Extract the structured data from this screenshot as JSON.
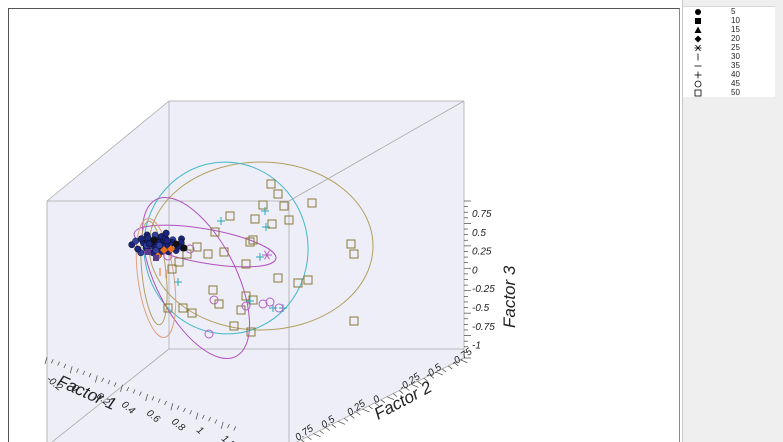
{
  "chart_data": {
    "type": "scatter",
    "dimensions": 3,
    "axes": {
      "x": {
        "label": "Factor 1",
        "ticks": [
          "-0.2",
          "0",
          "0.2",
          "0.4",
          "0.6",
          "0.8",
          "1",
          "1.2"
        ]
      },
      "y": {
        "label": "Factor 2",
        "ticks": [
          "-0.75",
          "-0.5",
          "-0.25",
          "0",
          "0.25",
          "0.5",
          "0.75"
        ]
      },
      "z": {
        "label": "Factor 3",
        "ticks": [
          "0.75",
          "0.5",
          "0.25",
          "0",
          "-0.25",
          "-0.5",
          "-0.75",
          "-1"
        ]
      }
    },
    "legend": {
      "position": "right",
      "entries": [
        {
          "symbol": "circle-filled",
          "label": "5"
        },
        {
          "symbol": "square-filled",
          "label": "10"
        },
        {
          "symbol": "triangle-filled",
          "label": "15"
        },
        {
          "symbol": "diamond-filled",
          "label": "20"
        },
        {
          "symbol": "asterisk",
          "label": "25"
        },
        {
          "symbol": "vbar",
          "label": "30"
        },
        {
          "symbol": "hbar",
          "label": "35"
        },
        {
          "symbol": "plus",
          "label": "40"
        },
        {
          "symbol": "circle-open",
          "label": "45"
        },
        {
          "symbol": "square-open",
          "label": "50"
        }
      ]
    },
    "colors": {
      "square_open": "#8a7a3a",
      "plus": "#2fa8b8",
      "circle_open": "#b060c0",
      "ellipse_olive": "#b0a060",
      "ellipse_cyan": "#40b8c8",
      "ellipse_purple": "#b050c0",
      "ellipse_orange": "#e0a080",
      "cluster_navy": "#1a237e",
      "cluster_orange": "#e87020",
      "box_fill": "#eeeef8",
      "box_edge": "#aaaaaa"
    }
  }
}
